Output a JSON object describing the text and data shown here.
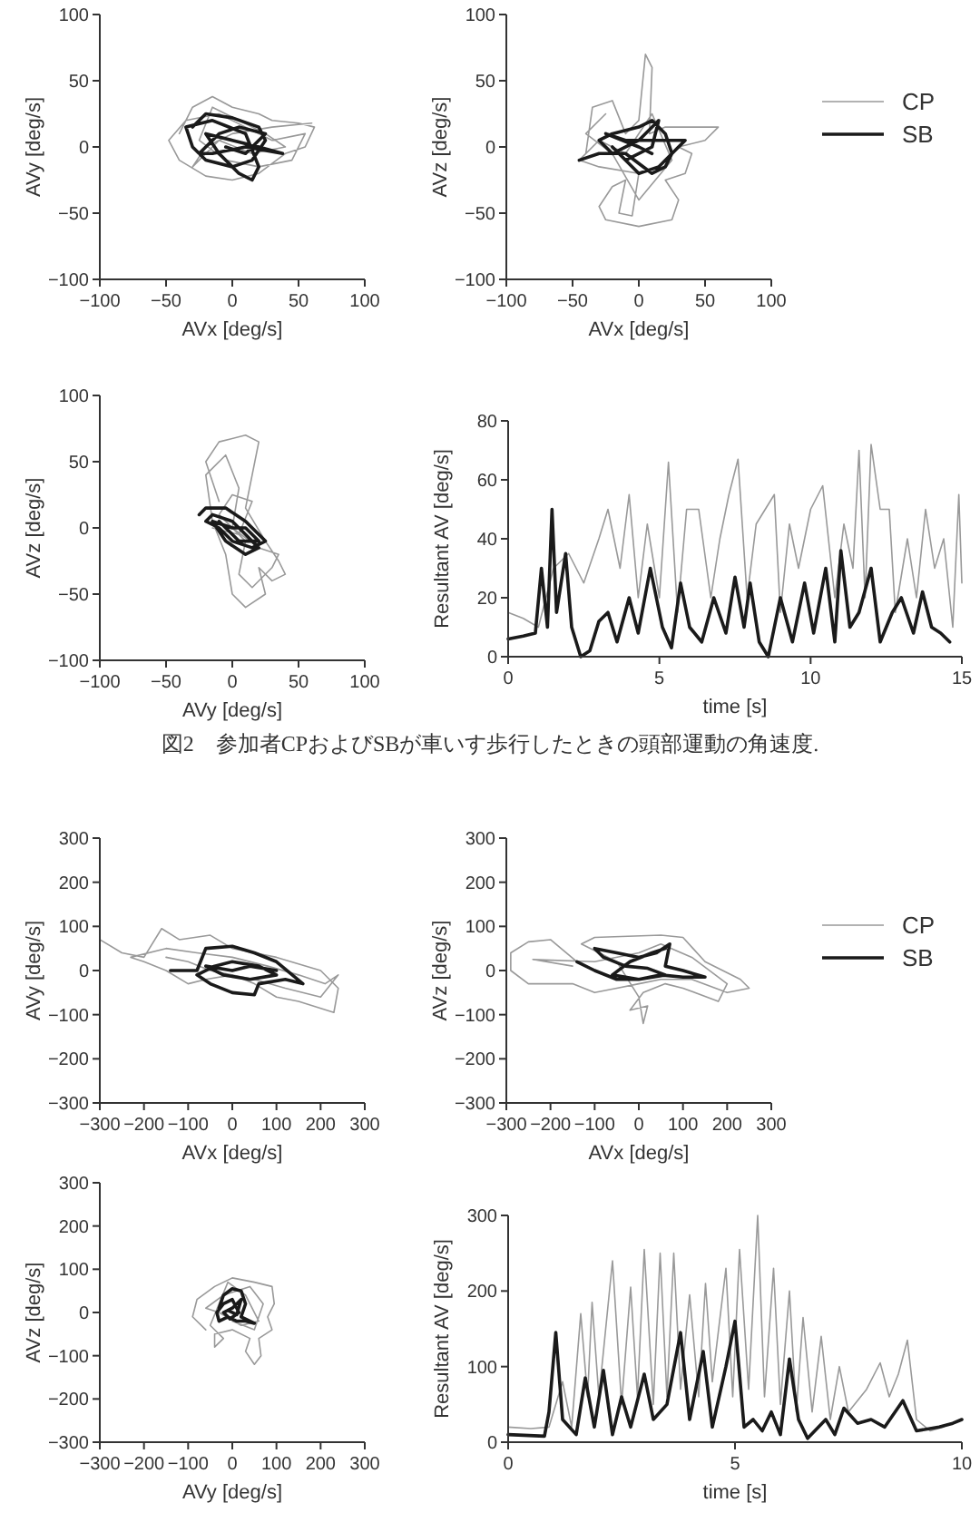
{
  "chart_data": [
    {
      "type": "line",
      "xlabel": "AVx [deg/s]",
      "ylabel": "AVy [deg/s]",
      "xlim": [
        -100,
        100
      ],
      "ylim": [
        -100,
        100
      ],
      "xticks": [
        -100,
        -50,
        0,
        50,
        100
      ],
      "yticks": [
        -100,
        -50,
        0,
        50,
        100
      ],
      "series": [
        {
          "color": "#999999",
          "x": [
            -40,
            -30,
            -15,
            0,
            20,
            30,
            50,
            62,
            55,
            40,
            20,
            0,
            -20,
            -40,
            -48,
            -35,
            -10,
            10,
            30,
            55,
            45,
            20,
            -5,
            -25,
            -15,
            5,
            25,
            40,
            15,
            -10,
            -30,
            -20,
            0,
            30,
            60
          ],
          "values": [
            10,
            30,
            38,
            30,
            25,
            20,
            18,
            15,
            0,
            -5,
            -20,
            -25,
            -22,
            -10,
            5,
            20,
            25,
            15,
            5,
            10,
            -10,
            -15,
            -10,
            5,
            30,
            20,
            10,
            0,
            -5,
            5,
            -15,
            0,
            10,
            15,
            18
          ]
        },
        {
          "color": "#1a1a1a",
          "x": [
            -30,
            -20,
            0,
            20,
            25,
            15,
            0,
            -20,
            -30,
            -35,
            -15,
            10,
            20,
            15,
            5,
            -10,
            -20,
            0,
            20,
            38,
            10,
            -15,
            -25,
            -10,
            5,
            25,
            10,
            -5
          ],
          "values": [
            15,
            25,
            22,
            15,
            5,
            -10,
            -15,
            -10,
            0,
            15,
            20,
            10,
            -15,
            -25,
            -20,
            -5,
            10,
            5,
            0,
            -5,
            0,
            -5,
            -5,
            10,
            15,
            10,
            -5,
            0
          ]
        }
      ]
    },
    {
      "type": "line",
      "xlabel": "AVx [deg/s]",
      "ylabel": "AVz [deg/s]",
      "xlim": [
        -100,
        100
      ],
      "ylim": [
        -100,
        100
      ],
      "xticks": [
        -100,
        -50,
        0,
        50,
        100
      ],
      "yticks": [
        -100,
        -50,
        0,
        50,
        100
      ],
      "legend": "right",
      "series": [
        {
          "name": "CP",
          "color": "#999999",
          "x": [
            -40,
            -35,
            -20,
            -10,
            0,
            5,
            10,
            8,
            20,
            40,
            60,
            50,
            30,
            40,
            35,
            20,
            30,
            25,
            0,
            -25,
            -30,
            -20,
            -10,
            -15,
            -5,
            0,
            -30,
            -45,
            -30,
            -10,
            10,
            25,
            0,
            -20,
            -40,
            -25
          ],
          "values": [
            -5,
            30,
            35,
            10,
            20,
            70,
            60,
            10,
            15,
            15,
            15,
            5,
            0,
            -5,
            -20,
            -25,
            -40,
            -55,
            -60,
            -55,
            -45,
            -30,
            -25,
            -50,
            -52,
            -20,
            -15,
            -10,
            5,
            -5,
            25,
            -10,
            -40,
            -5,
            10,
            25
          ]
        },
        {
          "name": "SB",
          "color": "#1a1a1a",
          "x": [
            -45,
            -30,
            -10,
            10,
            20,
            25,
            20,
            10,
            0,
            -20,
            -30,
            -20,
            0,
            15,
            10,
            -10,
            -20,
            0,
            15,
            30,
            35,
            15,
            -10,
            -25,
            0,
            10
          ],
          "values": [
            -10,
            -5,
            -5,
            -20,
            -15,
            -5,
            10,
            20,
            15,
            10,
            5,
            -5,
            5,
            20,
            0,
            -10,
            0,
            -20,
            -15,
            0,
            5,
            5,
            5,
            10,
            0,
            -5
          ]
        }
      ]
    },
    {
      "type": "line",
      "xlabel": "AVy [deg/s]",
      "ylabel": "AVz [deg/s]",
      "xlim": [
        -100,
        100
      ],
      "ylim": [
        -100,
        100
      ],
      "xticks": [
        -100,
        -50,
        0,
        50,
        100
      ],
      "yticks": [
        -100,
        -50,
        0,
        50,
        100
      ],
      "series": [
        {
          "color": "#999999",
          "x": [
            -10,
            -20,
            -10,
            10,
            20,
            15,
            10,
            25,
            35,
            40,
            30,
            20,
            25,
            10,
            0,
            -5,
            -15,
            -20,
            -5,
            5,
            0,
            20,
            35,
            30,
            15,
            5,
            10,
            -10,
            0,
            15,
            5,
            -15
          ],
          "values": [
            20,
            50,
            65,
            70,
            65,
            40,
            15,
            -10,
            -25,
            -35,
            -40,
            -30,
            -50,
            -60,
            -50,
            -20,
            5,
            40,
            55,
            30,
            0,
            -15,
            -20,
            -30,
            -45,
            -35,
            -10,
            10,
            25,
            20,
            -5,
            0
          ]
        },
        {
          "color": "#1a1a1a",
          "x": [
            -25,
            -20,
            -5,
            10,
            20,
            25,
            15,
            0,
            -10,
            -20,
            -15,
            0,
            10,
            20,
            10,
            -5,
            -15,
            0,
            10,
            20,
            5,
            -10
          ],
          "values": [
            10,
            15,
            15,
            5,
            -5,
            -10,
            -15,
            -10,
            0,
            5,
            10,
            5,
            -5,
            -15,
            -20,
            -10,
            5,
            0,
            0,
            -10,
            -10,
            5
          ]
        }
      ]
    },
    {
      "type": "line",
      "xlabel": "time [s]",
      "ylabel": "Resultant AV [deg/s]",
      "xlim": [
        0,
        15
      ],
      "ylim": [
        0,
        80
      ],
      "xticks": [
        0,
        5,
        10,
        15
      ],
      "yticks": [
        0,
        20,
        40,
        60,
        80
      ],
      "annotations": [
        "図2　参加者CPおよびSBが車いす歩行したときの頭部運動の角速度."
      ],
      "series": [
        {
          "color": "#999999",
          "x": [
            0,
            0.5,
            1,
            1.5,
            2,
            2.5,
            3,
            3.3,
            3.7,
            4,
            4.3,
            4.6,
            5,
            5.3,
            5.6,
            5.9,
            6.3,
            6.7,
            7,
            7.3,
            7.6,
            7.9,
            8.2,
            8.5,
            8.8,
            9,
            9.3,
            9.6,
            10,
            10.4,
            10.8,
            11.1,
            11.4,
            11.6,
            11.8,
            12,
            12.3,
            12.6,
            12.8,
            13.2,
            13.5,
            13.8,
            14.1,
            14.4,
            14.7,
            14.9,
            15
          ],
          "values": [
            15,
            13,
            10,
            30,
            35,
            25,
            40,
            50,
            30,
            55,
            20,
            45,
            20,
            66,
            15,
            50,
            50,
            20,
            40,
            55,
            67,
            20,
            45,
            50,
            55,
            15,
            45,
            30,
            50,
            58,
            20,
            45,
            30,
            70,
            20,
            72,
            50,
            50,
            15,
            40,
            20,
            50,
            30,
            40,
            10,
            55,
            25
          ]
        },
        {
          "color": "#1a1a1a",
          "x": [
            0,
            0.5,
            0.9,
            1.1,
            1.3,
            1.45,
            1.6,
            1.9,
            2.1,
            2.4,
            2.7,
            3,
            3.3,
            3.6,
            4,
            4.3,
            4.7,
            5.1,
            5.4,
            5.7,
            6,
            6.4,
            6.8,
            7.2,
            7.5,
            7.8,
            8,
            8.3,
            8.6,
            9,
            9.4,
            9.8,
            10.1,
            10.5,
            10.8,
            11,
            11.3,
            11.6,
            12,
            12.3,
            12.7,
            13,
            13.4,
            13.7,
            14,
            14.3,
            14.6
          ],
          "values": [
            6,
            7,
            8,
            30,
            10,
            50,
            15,
            35,
            10,
            0,
            2,
            12,
            15,
            5,
            20,
            8,
            30,
            10,
            3,
            25,
            10,
            5,
            20,
            8,
            27,
            10,
            25,
            5,
            0,
            20,
            5,
            25,
            8,
            30,
            5,
            36,
            10,
            15,
            30,
            5,
            15,
            20,
            8,
            22,
            10,
            8,
            5
          ]
        }
      ]
    },
    {
      "type": "line",
      "xlabel": "AVx [deg/s]",
      "ylabel": "AVy [deg/s]",
      "xlim": [
        -300,
        300
      ],
      "ylim": [
        -300,
        300
      ],
      "xticks": [
        -300,
        -200,
        -100,
        0,
        100,
        200,
        300
      ],
      "yticks": [
        -300,
        -200,
        -100,
        0,
        100,
        200,
        300
      ],
      "series": [
        {
          "color": "#999999",
          "x": [
            -300,
            -250,
            -200,
            -160,
            -120,
            -50,
            0,
            50,
            100,
            200,
            240,
            230,
            150,
            100,
            50,
            0,
            -60,
            -100,
            -150,
            -200,
            -230,
            -150,
            -80,
            0,
            80,
            150,
            210,
            240,
            200,
            120,
            50,
            -50,
            -100,
            -150
          ],
          "values": [
            70,
            40,
            30,
            95,
            70,
            80,
            50,
            40,
            30,
            0,
            -40,
            -95,
            -70,
            -60,
            -30,
            -10,
            -20,
            -30,
            0,
            20,
            30,
            50,
            40,
            30,
            10,
            -10,
            -30,
            -10,
            -60,
            -40,
            -20,
            0,
            20,
            30
          ]
        },
        {
          "color": "#1a1a1a",
          "x": [
            -140,
            -80,
            -60,
            0,
            50,
            100,
            160,
            120,
            60,
            50,
            0,
            -50,
            -80,
            -40,
            0,
            60,
            100,
            40,
            -20,
            -60,
            0,
            40,
            100
          ],
          "values": [
            0,
            0,
            50,
            55,
            40,
            20,
            -30,
            -20,
            -30,
            -55,
            -50,
            -30,
            -10,
            10,
            20,
            10,
            -10,
            -20,
            -10,
            10,
            0,
            10,
            0
          ]
        }
      ]
    },
    {
      "type": "line",
      "xlabel": "AVx [deg/s]",
      "ylabel": "AVz [deg/s]",
      "xlim": [
        -300,
        300
      ],
      "ylim": [
        -300,
        300
      ],
      "xticks": [
        -300,
        -200,
        -100,
        0,
        100,
        200,
        300
      ],
      "yticks": [
        -300,
        -200,
        -100,
        0,
        100,
        200,
        300
      ],
      "legend": "right",
      "series": [
        {
          "name": "CP",
          "color": "#999999",
          "x": [
            -140,
            -200,
            -250,
            -290,
            -290,
            -250,
            -150,
            -100,
            -50,
            0,
            50,
            120,
            200,
            250,
            230,
            150,
            100,
            50,
            -100,
            -130,
            -50,
            0,
            10,
            20,
            -20,
            10,
            60,
            100,
            180,
            200,
            120,
            50,
            0,
            -100,
            -240,
            -150
          ],
          "values": [
            20,
            70,
            65,
            40,
            0,
            -30,
            -30,
            -50,
            -40,
            -30,
            -20,
            -20,
            -50,
            -40,
            -20,
            20,
            75,
            80,
            75,
            60,
            20,
            -60,
            -120,
            -80,
            -90,
            -50,
            -30,
            -40,
            -70,
            -30,
            30,
            60,
            40,
            20,
            25,
            10
          ]
        },
        {
          "name": "SB",
          "color": "#1a1a1a",
          "x": [
            -140,
            -100,
            -50,
            0,
            50,
            100,
            150,
            100,
            60,
            70,
            40,
            0,
            -50,
            -100,
            -80,
            -30,
            20,
            60,
            0,
            -60,
            -20,
            30,
            60
          ],
          "values": [
            20,
            0,
            -20,
            -20,
            -10,
            -15,
            -15,
            0,
            10,
            60,
            40,
            30,
            40,
            50,
            30,
            10,
            5,
            -10,
            -20,
            -10,
            20,
            40,
            50
          ]
        }
      ]
    },
    {
      "type": "line",
      "xlabel": "AVy [deg/s]",
      "ylabel": "AVz [deg/s]",
      "xlim": [
        -300,
        300
      ],
      "ylim": [
        -300,
        300
      ],
      "xticks": [
        -300,
        -200,
        -100,
        0,
        100,
        200,
        300
      ],
      "yticks": [
        -300,
        -200,
        -100,
        0,
        100,
        200,
        300
      ],
      "series": [
        {
          "color": "#999999",
          "x": [
            -60,
            -90,
            -80,
            -40,
            0,
            50,
            90,
            95,
            80,
            90,
            60,
            65,
            50,
            30,
            40,
            0,
            -40,
            -40,
            -20,
            -50,
            -30,
            -10,
            30,
            60,
            20,
            -30,
            -60,
            -20,
            40,
            70,
            50,
            0
          ],
          "values": [
            -40,
            -10,
            30,
            60,
            80,
            70,
            60,
            20,
            -10,
            -40,
            -60,
            -100,
            -120,
            -90,
            -60,
            -40,
            -50,
            -80,
            -60,
            -30,
            20,
            70,
            40,
            -20,
            -30,
            0,
            10,
            40,
            60,
            20,
            -40,
            -20
          ]
        },
        {
          "color": "#1a1a1a",
          "x": [
            -30,
            -20,
            0,
            20,
            30,
            20,
            50,
            30,
            10,
            -10,
            -30,
            -35,
            -20,
            0,
            15,
            -5,
            -20,
            0,
            20,
            10,
            -10
          ],
          "values": [
            10,
            40,
            55,
            50,
            20,
            -10,
            -25,
            -20,
            -20,
            -10,
            -20,
            0,
            20,
            30,
            0,
            -15,
            0,
            10,
            30,
            -5,
            5
          ]
        }
      ]
    },
    {
      "type": "line",
      "xlabel": "time [s]",
      "ylabel": "Resultant AV [deg/s]",
      "xlim": [
        0,
        10
      ],
      "ylim": [
        0,
        300
      ],
      "xticks": [
        0,
        5,
        10
      ],
      "yticks": [
        0,
        100,
        200,
        300
      ],
      "series": [
        {
          "color": "#999999",
          "x": [
            0,
            0.5,
            0.9,
            1.2,
            1.4,
            1.6,
            1.75,
            1.85,
            2,
            2.3,
            2.5,
            2.7,
            2.85,
            3,
            3.2,
            3.35,
            3.5,
            3.65,
            3.8,
            4,
            4.2,
            4.35,
            4.5,
            4.8,
            4.95,
            5.1,
            5.3,
            5.5,
            5.65,
            5.85,
            6,
            6.2,
            6.35,
            6.5,
            6.7,
            6.9,
            7.1,
            7.3,
            7.5,
            7.9,
            8.2,
            8.4,
            8.6,
            8.8,
            9,
            9.3,
            9.6
          ],
          "values": [
            20,
            18,
            20,
            80,
            20,
            170,
            60,
            185,
            60,
            240,
            50,
            205,
            60,
            255,
            50,
            250,
            60,
            250,
            70,
            195,
            60,
            210,
            80,
            230,
            60,
            255,
            70,
            300,
            60,
            230,
            50,
            200,
            40,
            165,
            40,
            140,
            30,
            100,
            40,
            70,
            105,
            60,
            90,
            135,
            30,
            15,
            20
          ]
        },
        {
          "color": "#1a1a1a",
          "x": [
            0,
            0.8,
            0.9,
            1.05,
            1.2,
            1.5,
            1.7,
            1.9,
            2.1,
            2.3,
            2.5,
            2.7,
            3,
            3.2,
            3.5,
            3.8,
            4,
            4.3,
            4.5,
            4.8,
            5,
            5.2,
            5.4,
            5.6,
            5.8,
            6,
            6.2,
            6.4,
            6.6,
            7,
            7.2,
            7.4,
            7.7,
            8,
            8.3,
            8.7,
            9,
            9.5,
            9.8,
            10
          ],
          "values": [
            10,
            8,
            40,
            145,
            30,
            10,
            85,
            20,
            95,
            10,
            60,
            20,
            90,
            30,
            50,
            145,
            30,
            120,
            20,
            100,
            160,
            20,
            30,
            15,
            40,
            10,
            110,
            30,
            5,
            30,
            10,
            45,
            25,
            30,
            20,
            55,
            15,
            20,
            25,
            30
          ]
        }
      ]
    }
  ]
}
